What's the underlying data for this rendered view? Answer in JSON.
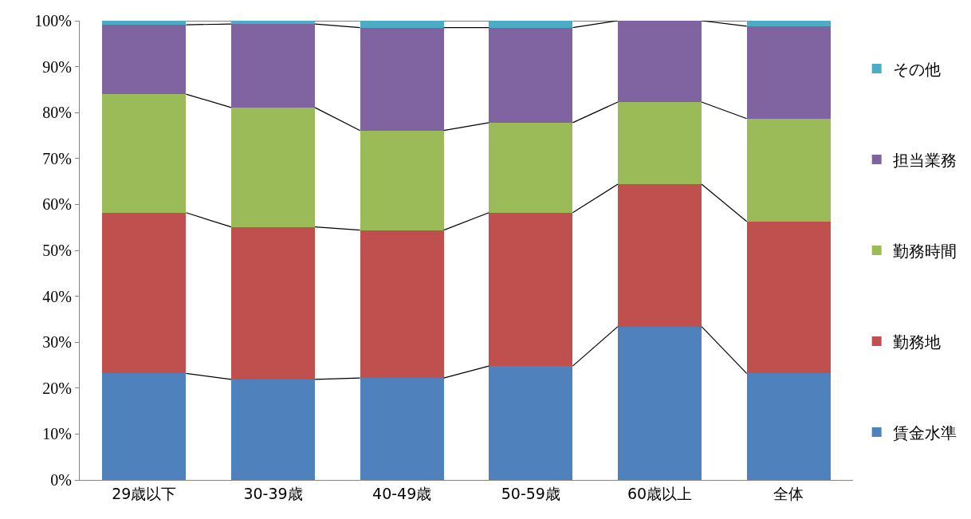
{
  "chart_data": {
    "type": "bar",
    "stacked": true,
    "categories": [
      "29歳以下",
      "30-39歳",
      "40-49歳",
      "50-59歳",
      "60歳以上",
      "全体"
    ],
    "series": [
      {
        "name": "賃金水準",
        "color": "#4f81bd",
        "values": [
          23.2,
          21.9,
          22.2,
          24.8,
          33.4,
          23.2
        ]
      },
      {
        "name": "勤務地",
        "color": "#c0504d",
        "values": [
          35.0,
          33.2,
          32.2,
          33.4,
          31.0,
          33.1
        ]
      },
      {
        "name": "勤務時間",
        "color": "#9bbb59",
        "values": [
          25.8,
          26.0,
          21.7,
          19.6,
          17.9,
          22.4
        ]
      },
      {
        "name": "担当業務",
        "color": "#8064a2",
        "values": [
          15.1,
          18.2,
          22.4,
          20.7,
          17.7,
          20.1
        ]
      },
      {
        "name": "その他",
        "color": "#4bacc6",
        "values": [
          0.9,
          0.7,
          1.5,
          1.5,
          0.0,
          1.2
        ]
      }
    ],
    "ylim": [
      0,
      100
    ],
    "yticks": [
      {
        "value": 0,
        "label": "0%"
      },
      {
        "value": 10,
        "label": "10%"
      },
      {
        "value": 20,
        "label": "20%"
      },
      {
        "value": 30,
        "label": "30%"
      },
      {
        "value": 40,
        "label": "40%"
      },
      {
        "value": 50,
        "label": "50%"
      },
      {
        "value": 60,
        "label": "60%"
      },
      {
        "value": 70,
        "label": "70%"
      },
      {
        "value": 80,
        "label": "80%"
      },
      {
        "value": 90,
        "label": "90%"
      },
      {
        "value": 100,
        "label": "100%"
      }
    ],
    "legend": "right"
  }
}
